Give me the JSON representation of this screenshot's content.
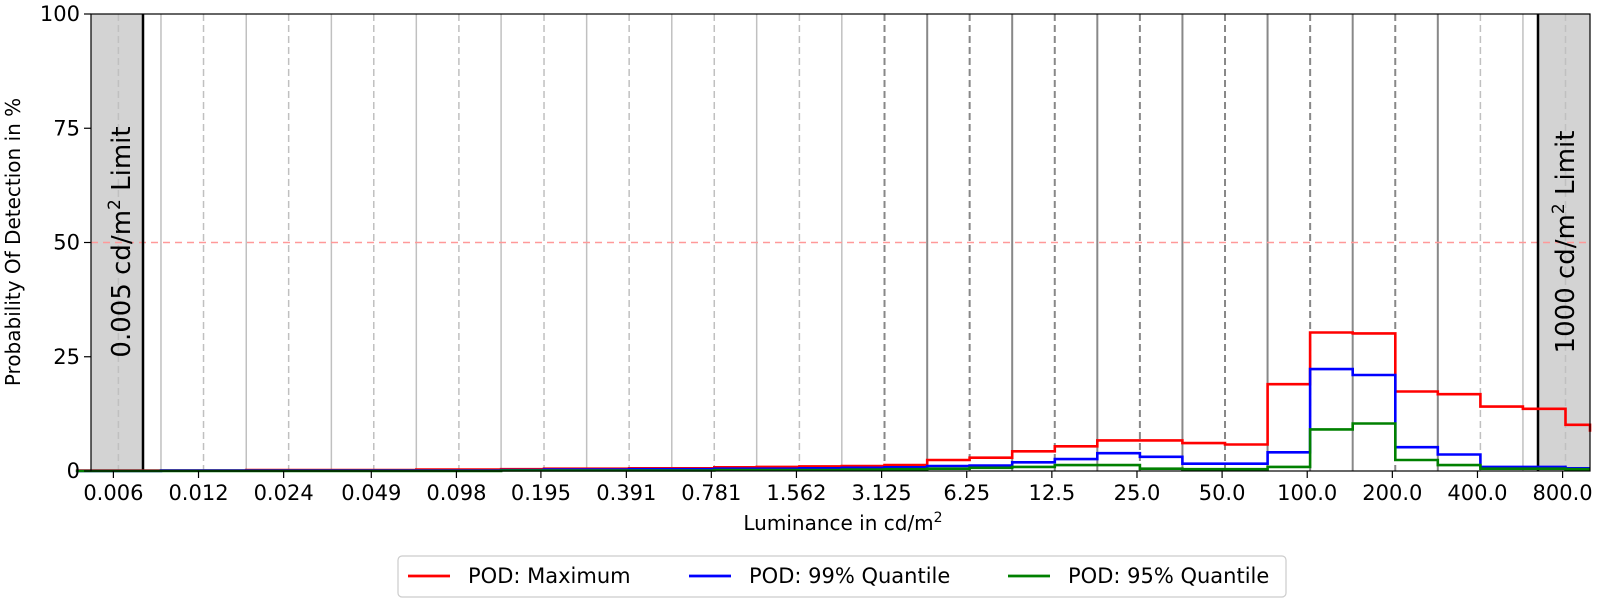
{
  "colors": {
    "maximum": "#ff0000",
    "q99": "#0000ff",
    "q95": "#008000",
    "limit_band": "#d3d3d3",
    "threshold": "#ff9999"
  },
  "chart_data": {
    "type": "step",
    "title": "",
    "xlabel": "Luminance in cd/m",
    "xlabel_sup": "2",
    "ylabel": "Probability Of Detection in %",
    "ylim": [
      0,
      100
    ],
    "yticks": [
      "0",
      "25",
      "50",
      "75",
      "100"
    ],
    "ytick_values": [
      0,
      25,
      50,
      75,
      100
    ],
    "threshold": 50,
    "x_scale": "log2",
    "x_range": [
      0.005,
      1000
    ],
    "xticks": [
      {
        "label": "0.006",
        "value": 0.006
      },
      {
        "label": "0.012",
        "value": 0.012
      },
      {
        "label": "0.024",
        "value": 0.024
      },
      {
        "label": "0.049",
        "value": 0.049
      },
      {
        "label": "0.098",
        "value": 0.098
      },
      {
        "label": "0.195",
        "value": 0.195
      },
      {
        "label": "0.391",
        "value": 0.391
      },
      {
        "label": "0.781",
        "value": 0.781
      },
      {
        "label": "1.562",
        "value": 1.562
      },
      {
        "label": "3.125",
        "value": 3.125
      },
      {
        "label": "6.25",
        "value": 6.25
      },
      {
        "label": "12.5",
        "value": 12.5
      },
      {
        "label": "25.0",
        "value": 25.0
      },
      {
        "label": "50.0",
        "value": 50.0
      },
      {
        "label": "100.0",
        "value": 100.0
      },
      {
        "label": "200.0",
        "value": 200.0
      },
      {
        "label": "400.0",
        "value": 400.0
      },
      {
        "label": "800.0",
        "value": 800.0
      }
    ],
    "bin_edges": [
      0.00442,
      0.00625,
      0.00884,
      0.0125,
      0.0177,
      0.025,
      0.0354,
      0.05,
      0.0707,
      0.1,
      0.141,
      0.2,
      0.283,
      0.4,
      0.566,
      0.8,
      1.13,
      1.6,
      2.26,
      3.2,
      4.53,
      6.4,
      9.05,
      12.8,
      18.1,
      25.6,
      36.2,
      51.2,
      72.4,
      102.4,
      144.8,
      204.8,
      289.6,
      409.6,
      579.2,
      819.2,
      1000
    ],
    "series": [
      {
        "name": "POD: Maximum",
        "color_key": "maximum",
        "values": [
          0.1,
          0.1,
          0.1,
          0.1,
          0.2,
          0.2,
          0.2,
          0.2,
          0.3,
          0.3,
          0.4,
          0.5,
          0.5,
          0.6,
          0.6,
          0.8,
          0.9,
          1.0,
          1.1,
          1.3,
          2.4,
          2.9,
          4.3,
          5.4,
          6.7,
          6.7,
          6.1,
          5.8,
          19.0,
          30.3,
          30.1,
          17.4,
          16.8,
          14.1,
          13.6,
          10.1,
          8.6
        ]
      },
      {
        "name": "POD: 99% Quantile",
        "color_key": "q99",
        "values": [
          0.0,
          0.0,
          0.1,
          0.1,
          0.1,
          0.1,
          0.1,
          0.1,
          0.1,
          0.1,
          0.2,
          0.3,
          0.3,
          0.4,
          0.4,
          0.5,
          0.5,
          0.6,
          0.7,
          0.8,
          1.1,
          1.2,
          1.9,
          2.6,
          3.9,
          3.1,
          1.6,
          1.6,
          4.1,
          22.3,
          21.0,
          5.2,
          3.6,
          0.9,
          0.9,
          0.6,
          0.6
        ]
      },
      {
        "name": "POD: 95% Quantile",
        "color_key": "q95",
        "values": [
          0.0,
          0.0,
          0.0,
          0.0,
          0.0,
          0.0,
          0.0,
          0.0,
          0.0,
          0.0,
          0.1,
          0.1,
          0.1,
          0.1,
          0.1,
          0.2,
          0.2,
          0.2,
          0.3,
          0.4,
          0.5,
          0.7,
          0.9,
          1.3,
          1.3,
          0.5,
          0.4,
          0.4,
          0.9,
          9.1,
          10.4,
          2.4,
          1.3,
          0.5,
          0.5,
          0.4,
          0.4
        ]
      }
    ],
    "limits": {
      "low_label": "0.005 cd/m",
      "low_sup": "2",
      "low_tail": " Limit",
      "high_label": "1000 cd/m",
      "high_sup": "2",
      "high_tail": " Limit"
    },
    "legend": {
      "placement": "bottom-center",
      "entries": [
        "POD: Maximum",
        "POD: 99% Quantile",
        "POD: 95% Quantile"
      ]
    }
  }
}
